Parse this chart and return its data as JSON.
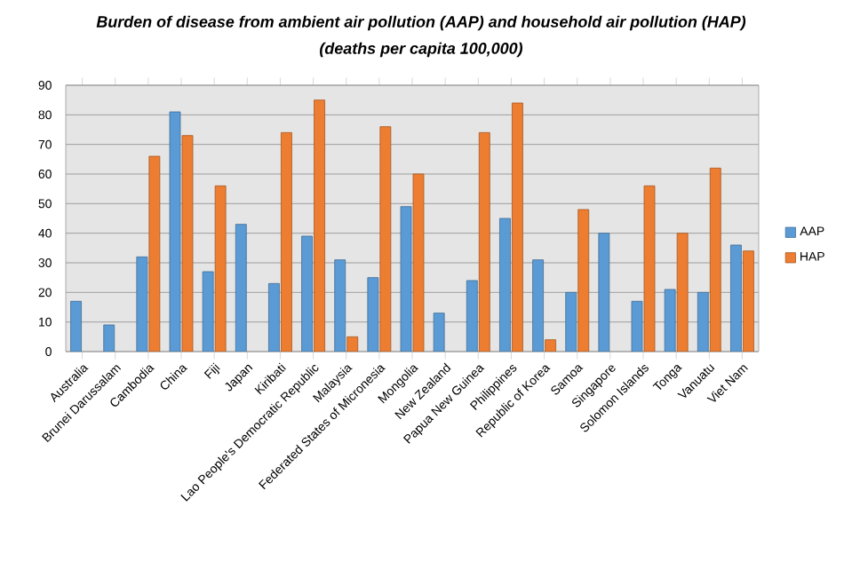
{
  "chart_data": {
    "type": "bar",
    "title": "Burden of disease from ambient air pollution (AAP) and household air pollution (HAP)",
    "subtitle": "(deaths per capita 100,000)",
    "categories": [
      "Australia",
      "Brunei Darussalam",
      "Cambodia",
      "China",
      "Fiji",
      "Japan",
      "Kiribati",
      "Lao People's Democratic Republic",
      "Malaysia",
      "Federated States of Micronesia",
      "Mongolia",
      "New Zealand",
      "Papua New Guinea",
      "Philippines",
      "Republic of Korea",
      "Samoa",
      "Singapore",
      "Solomon Islands",
      "Tonga",
      "Vanuatu",
      "Viet Nam"
    ],
    "series": [
      {
        "name": "AAP",
        "color": "#5b9bd5",
        "values": [
          17,
          9,
          32,
          81,
          27,
          43,
          23,
          39,
          31,
          25,
          49,
          13,
          24,
          45,
          31,
          20,
          40,
          17,
          21,
          20,
          36
        ]
      },
      {
        "name": "HAP",
        "color": "#ed7d31",
        "values": [
          null,
          null,
          66,
          73,
          56,
          null,
          74,
          85,
          5,
          76,
          60,
          null,
          74,
          84,
          4,
          48,
          null,
          56,
          40,
          62,
          34
        ]
      }
    ],
    "ylim": [
      0,
      90
    ],
    "yticks": [
      0,
      10,
      20,
      30,
      40,
      50,
      60,
      70,
      80,
      90
    ],
    "grid": "y",
    "legend": "right"
  }
}
